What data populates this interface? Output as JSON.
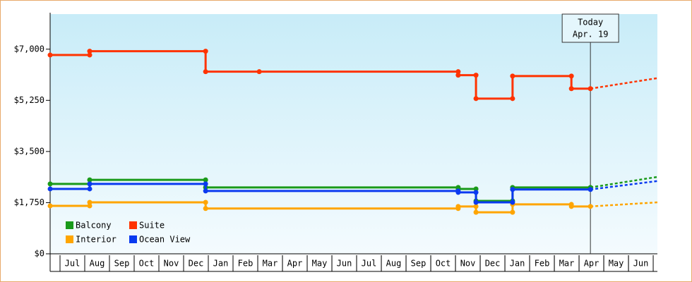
{
  "chart_data": {
    "type": "line",
    "step_points": true,
    "xlim": [
      -0.4,
      24.17
    ],
    "xticks": [
      {
        "value": 0.5,
        "label": "Jul"
      },
      {
        "value": 1.5,
        "label": "Aug"
      },
      {
        "value": 2.5,
        "label": "Sep"
      },
      {
        "value": 3.5,
        "label": "Oct"
      },
      {
        "value": 4.5,
        "label": "Nov"
      },
      {
        "value": 5.5,
        "label": "Dec"
      },
      {
        "value": 6.5,
        "label": "Jan"
      },
      {
        "value": 7.5,
        "label": "Feb"
      },
      {
        "value": 8.5,
        "label": "Mar"
      },
      {
        "value": 9.5,
        "label": "Apr"
      },
      {
        "value": 10.5,
        "label": "May"
      },
      {
        "value": 11.5,
        "label": "Jun"
      },
      {
        "value": 12.5,
        "label": "Jul"
      },
      {
        "value": 13.5,
        "label": "Aug"
      },
      {
        "value": 14.5,
        "label": "Sep"
      },
      {
        "value": 15.5,
        "label": "Oct"
      },
      {
        "value": 16.5,
        "label": "Nov"
      },
      {
        "value": 17.5,
        "label": "Dec"
      },
      {
        "value": 18.5,
        "label": "Jan"
      },
      {
        "value": 19.5,
        "label": "Feb"
      },
      {
        "value": 20.5,
        "label": "Mar"
      },
      {
        "value": 21.5,
        "label": "Apr"
      },
      {
        "value": 22.5,
        "label": "May"
      },
      {
        "value": 23.5,
        "label": "Jun"
      }
    ],
    "ylim": [
      0,
      8200
    ],
    "yticks": [
      {
        "value": 0,
        "label": "$0"
      },
      {
        "value": 1750,
        "label": "$1,750"
      },
      {
        "value": 3500,
        "label": "$3,500"
      },
      {
        "value": 5250,
        "label": "$5,250"
      },
      {
        "value": 7000,
        "label": "$7,000"
      }
    ],
    "today": {
      "x": 21.46,
      "label": "Today",
      "date": "Apr. 19"
    },
    "legend": "lower left",
    "series": [
      {
        "name": "Balcony",
        "color": "#1a9a1a",
        "x": [
          -0.4,
          1.2,
          1.2,
          5.89,
          5.89,
          16.11,
          16.11,
          16.83,
          16.83,
          18.31,
          18.31,
          21.46,
          24.17
        ],
        "values": [
          2390,
          2390,
          2530,
          2530,
          2270,
          2270,
          2220,
          2220,
          1810,
          1810,
          2270,
          2270,
          2630
        ]
      },
      {
        "name": "Suite",
        "color": "#ff3300",
        "x": [
          -0.4,
          1.2,
          1.2,
          5.89,
          5.89,
          8.06,
          16.11,
          16.11,
          16.83,
          16.83,
          18.31,
          18.31,
          20.69,
          20.69,
          21.46,
          24.17
        ],
        "values": [
          6800,
          6800,
          6930,
          6930,
          6230,
          6230,
          6230,
          6110,
          6110,
          5310,
          5310,
          6080,
          6080,
          5650,
          5650,
          6010
        ]
      },
      {
        "name": "Interior",
        "color": "#ffa500",
        "x": [
          -0.4,
          1.2,
          1.2,
          5.89,
          5.89,
          16.11,
          16.11,
          16.83,
          16.83,
          18.31,
          18.31,
          20.69,
          20.69,
          21.46,
          24.17
        ],
        "values": [
          1640,
          1640,
          1760,
          1760,
          1550,
          1550,
          1620,
          1620,
          1420,
          1420,
          1690,
          1690,
          1620,
          1620,
          1760
        ]
      },
      {
        "name": "Ocean View",
        "color": "#0a3af0",
        "x": [
          -0.4,
          1.2,
          1.2,
          5.89,
          5.89,
          16.11,
          16.11,
          16.83,
          16.83,
          18.31,
          18.31,
          21.46,
          24.17
        ],
        "values": [
          2220,
          2220,
          2390,
          2390,
          2150,
          2150,
          2100,
          2100,
          1760,
          1760,
          2200,
          2200,
          2490
        ]
      }
    ]
  }
}
